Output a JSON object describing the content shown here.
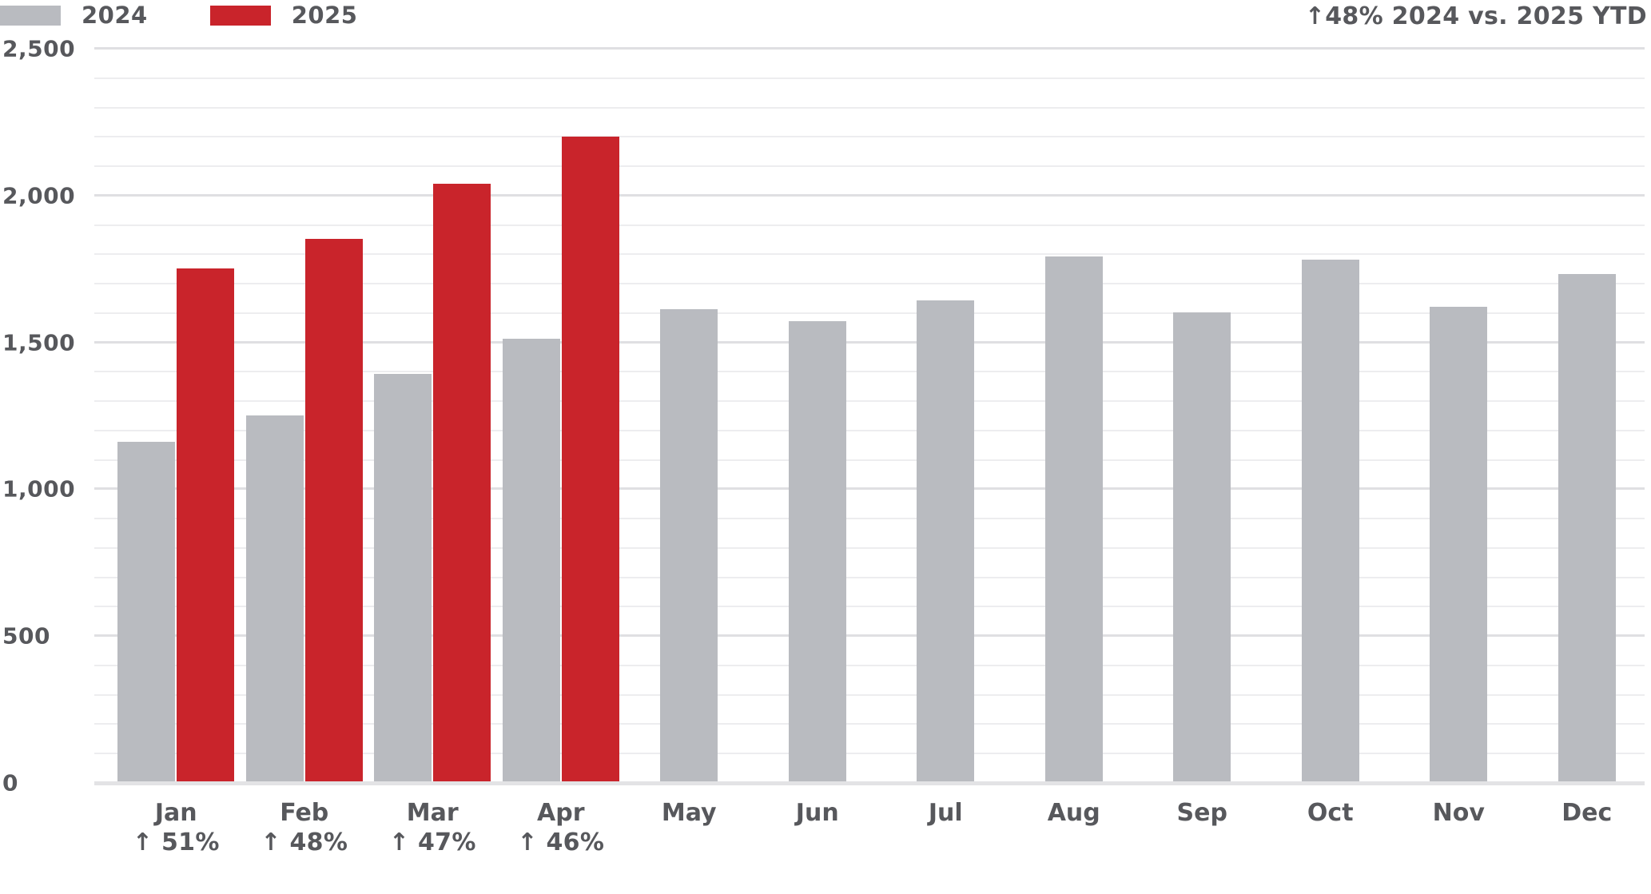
{
  "chart_data": {
    "type": "bar",
    "title": "",
    "categories": [
      "Jan",
      "Feb",
      "Mar",
      "Apr",
      "May",
      "Jun",
      "Jul",
      "Aug",
      "Sep",
      "Oct",
      "Nov",
      "Dec"
    ],
    "series": [
      {
        "name": "2024",
        "color": "#b9bbc0",
        "values": [
          1160,
          1250,
          1390,
          1510,
          1610,
          1570,
          1640,
          1790,
          1600,
          1780,
          1620,
          1730
        ]
      },
      {
        "name": "2025",
        "color": "#c9242b",
        "values": [
          1750,
          1850,
          2040,
          2200,
          null,
          null,
          null,
          null,
          null,
          null,
          null,
          null
        ]
      }
    ],
    "growth_labels": [
      "↑ 51%",
      "↑ 48%",
      "↑ 47%",
      "↑ 46%",
      "",
      "",
      "",
      "",
      "",
      "",
      "",
      ""
    ],
    "annotation": "↑48% 2024 vs. 2025 YTD",
    "ylim": [
      0,
      2500
    ],
    "ytick_step": 500,
    "grid_step": 100,
    "ytick_labels": [
      "0",
      "500",
      "1,000",
      "1,500",
      "2,000",
      "2,500"
    ],
    "legend_position": "top-left",
    "grid": true,
    "text_color": "#57585c"
  }
}
